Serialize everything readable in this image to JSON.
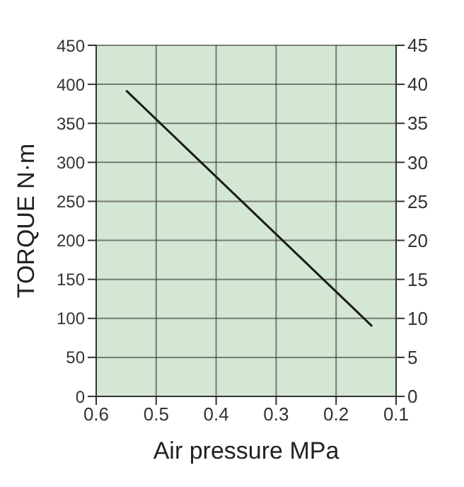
{
  "chart_data": {
    "type": "line",
    "xlabel": "Air pressure MPa",
    "ylabel": "TORQUE N·m",
    "x": [
      0.55,
      0.14
    ],
    "series": [
      {
        "color": "#1a1a1a",
        "values": [
          392,
          90
        ]
      }
    ],
    "xlim": [
      0.6,
      0.1
    ],
    "xticks": [
      0.6,
      0.5,
      0.4,
      0.3,
      0.2,
      0.1
    ],
    "ylim": [
      0,
      450
    ],
    "yticks": [
      0,
      50,
      100,
      150,
      200,
      250,
      300,
      350,
      400,
      450
    ],
    "y2lim": [
      0,
      45
    ],
    "y2ticks": [
      0,
      5,
      10,
      15,
      20,
      25,
      30,
      35,
      40,
      45
    ],
    "grid": true,
    "marker": "none",
    "line_style": "solid",
    "legend": false
  }
}
